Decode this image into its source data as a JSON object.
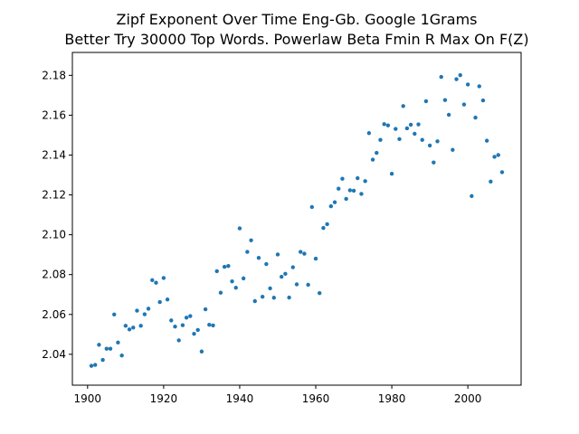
{
  "chart_data": {
    "type": "scatter",
    "title": "Zipf Exponent Over Time Eng-Gb. Google 1Grams",
    "subtitle": "Better Try 30000 Top Words. Powerlaw Beta Fmin R Max On F(Z)",
    "xlabel": "",
    "ylabel": "",
    "xlim": [
      1896,
      2014
    ],
    "ylim": [
      2.0245,
      2.1915
    ],
    "xticks": [
      1900,
      1920,
      1940,
      1960,
      1980,
      2000
    ],
    "yticks": [
      2.04,
      2.06,
      2.08,
      2.1,
      2.12,
      2.14,
      2.16,
      2.18
    ],
    "ytick_labels": [
      "2.04",
      "2.06",
      "2.08",
      "2.10",
      "2.12",
      "2.14",
      "2.16",
      "2.18"
    ],
    "grid": false,
    "legend": "none",
    "marker_color": "#1f77b4",
    "series": [
      {
        "x": [
          1901,
          1902,
          1903,
          1904,
          1905,
          1906,
          1907,
          1908,
          1909,
          1910,
          1911,
          1912,
          1913,
          1914,
          1915,
          1916,
          1917,
          1918,
          1919,
          1920,
          1921,
          1922,
          1923,
          1924,
          1925,
          1926,
          1927,
          1928,
          1929,
          1930,
          1931,
          1932,
          1933,
          1934,
          1935,
          1936,
          1937,
          1938,
          1939,
          1940,
          1941,
          1942,
          1943,
          1944,
          1945,
          1946,
          1947,
          1948,
          1949,
          1950,
          1951,
          1952,
          1953,
          1954,
          1955,
          1956,
          1957,
          1958,
          1959,
          1960,
          1961,
          1962,
          1963,
          1964,
          1965,
          1966,
          1967,
          1968,
          1969,
          1970,
          1971,
          1972,
          1973,
          1974,
          1975,
          1976,
          1977,
          1978,
          1979,
          1980,
          1981,
          1982,
          1983,
          1984,
          1985,
          1986,
          1987,
          1988,
          1989,
          1990,
          1991,
          1992,
          1993,
          1994,
          1995,
          1996,
          1997,
          1998,
          1999,
          2000,
          2001,
          2002,
          2003,
          2004,
          2005,
          2006,
          2007,
          2008,
          2009
        ],
        "y": [
          2.0342,
          2.0347,
          2.0448,
          2.0372,
          2.0428,
          2.0428,
          2.06,
          2.0459,
          2.0394,
          2.0543,
          2.0525,
          2.0534,
          2.0619,
          2.0543,
          2.0601,
          2.0629,
          2.0772,
          2.0759,
          2.0662,
          2.0783,
          2.0675,
          2.057,
          2.0539,
          2.047,
          2.0546,
          2.0584,
          2.0592,
          2.0503,
          2.0522,
          2.0414,
          2.0626,
          2.0548,
          2.0545,
          2.0817,
          2.0709,
          2.0839,
          2.0843,
          2.0766,
          2.0734,
          2.1032,
          2.0781,
          2.0914,
          2.0972,
          2.0667,
          2.0884,
          2.0689,
          2.0853,
          2.0731,
          2.0684,
          2.0901,
          2.0789,
          2.0804,
          2.0685,
          2.0837,
          2.0751,
          2.0914,
          2.0905,
          2.0749,
          2.1139,
          2.088,
          2.0707,
          2.1034,
          2.1053,
          2.1143,
          2.1163,
          2.1231,
          2.1281,
          2.118,
          2.1223,
          2.1221,
          2.1284,
          2.1205,
          2.1269,
          2.151,
          2.1377,
          2.1411,
          2.1476,
          2.1555,
          2.1549,
          2.1306,
          2.1531,
          2.148,
          2.1646,
          2.1534,
          2.1552,
          2.1507,
          2.1554,
          2.1476,
          2.167,
          2.1448,
          2.1363,
          2.1469,
          2.1792,
          2.1676,
          2.1602,
          2.1426,
          2.1781,
          2.1801,
          2.1654,
          2.1754,
          2.1194,
          2.1588,
          2.1745,
          2.1674,
          2.1472,
          2.1267,
          2.1391,
          2.14,
          2.1314
        ]
      }
    ]
  }
}
